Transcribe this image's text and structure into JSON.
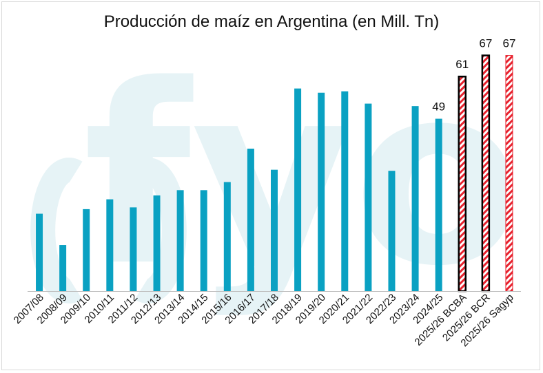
{
  "chart_data": {
    "type": "bar",
    "title": "Producción de maíz en Argentina (en Mill. Tn)",
    "xlabel": "",
    "ylabel": "",
    "ylim": [
      0,
      72
    ],
    "watermark_text": "fyo",
    "colors": {
      "bar": "#0aa1c2",
      "forecast_stripe": "#e8222e",
      "forecast_border": "#000000",
      "watermark": "#e6f3f6"
    },
    "categories": [
      "2007/08",
      "2008/09",
      "2009/10",
      "2010/11",
      "2011/12",
      "2012/13",
      "2013/14",
      "2014/15",
      "2015/16",
      "2016/17",
      "2017/18",
      "2018/19",
      "2019/20",
      "2020/21",
      "2021/22",
      "2022/23",
      "2023/24",
      "2024/25",
      "2025/26 BCBA",
      "2025/26 BCR",
      "2025/26 Sagyp"
    ],
    "values": [
      22,
      13.1,
      23.3,
      26.1,
      23.8,
      27.2,
      28.7,
      28.7,
      31,
      40.5,
      34.5,
      57.6,
      56.4,
      56.8,
      53.3,
      34.2,
      52.6,
      49,
      61,
      67,
      67
    ],
    "bar_styles": [
      "solid",
      "solid",
      "solid",
      "solid",
      "solid",
      "solid",
      "solid",
      "solid",
      "solid",
      "solid",
      "solid",
      "solid",
      "solid",
      "solid",
      "solid",
      "solid",
      "solid",
      "solid",
      "hatched-bordered",
      "hatched-bordered",
      "hatched"
    ],
    "data_labels": [
      "",
      "",
      "",
      "",
      "",
      "",
      "",
      "",
      "",
      "",
      "",
      "",
      "",
      "",
      "",
      "",
      "",
      "49",
      "61",
      "67",
      "67"
    ]
  }
}
